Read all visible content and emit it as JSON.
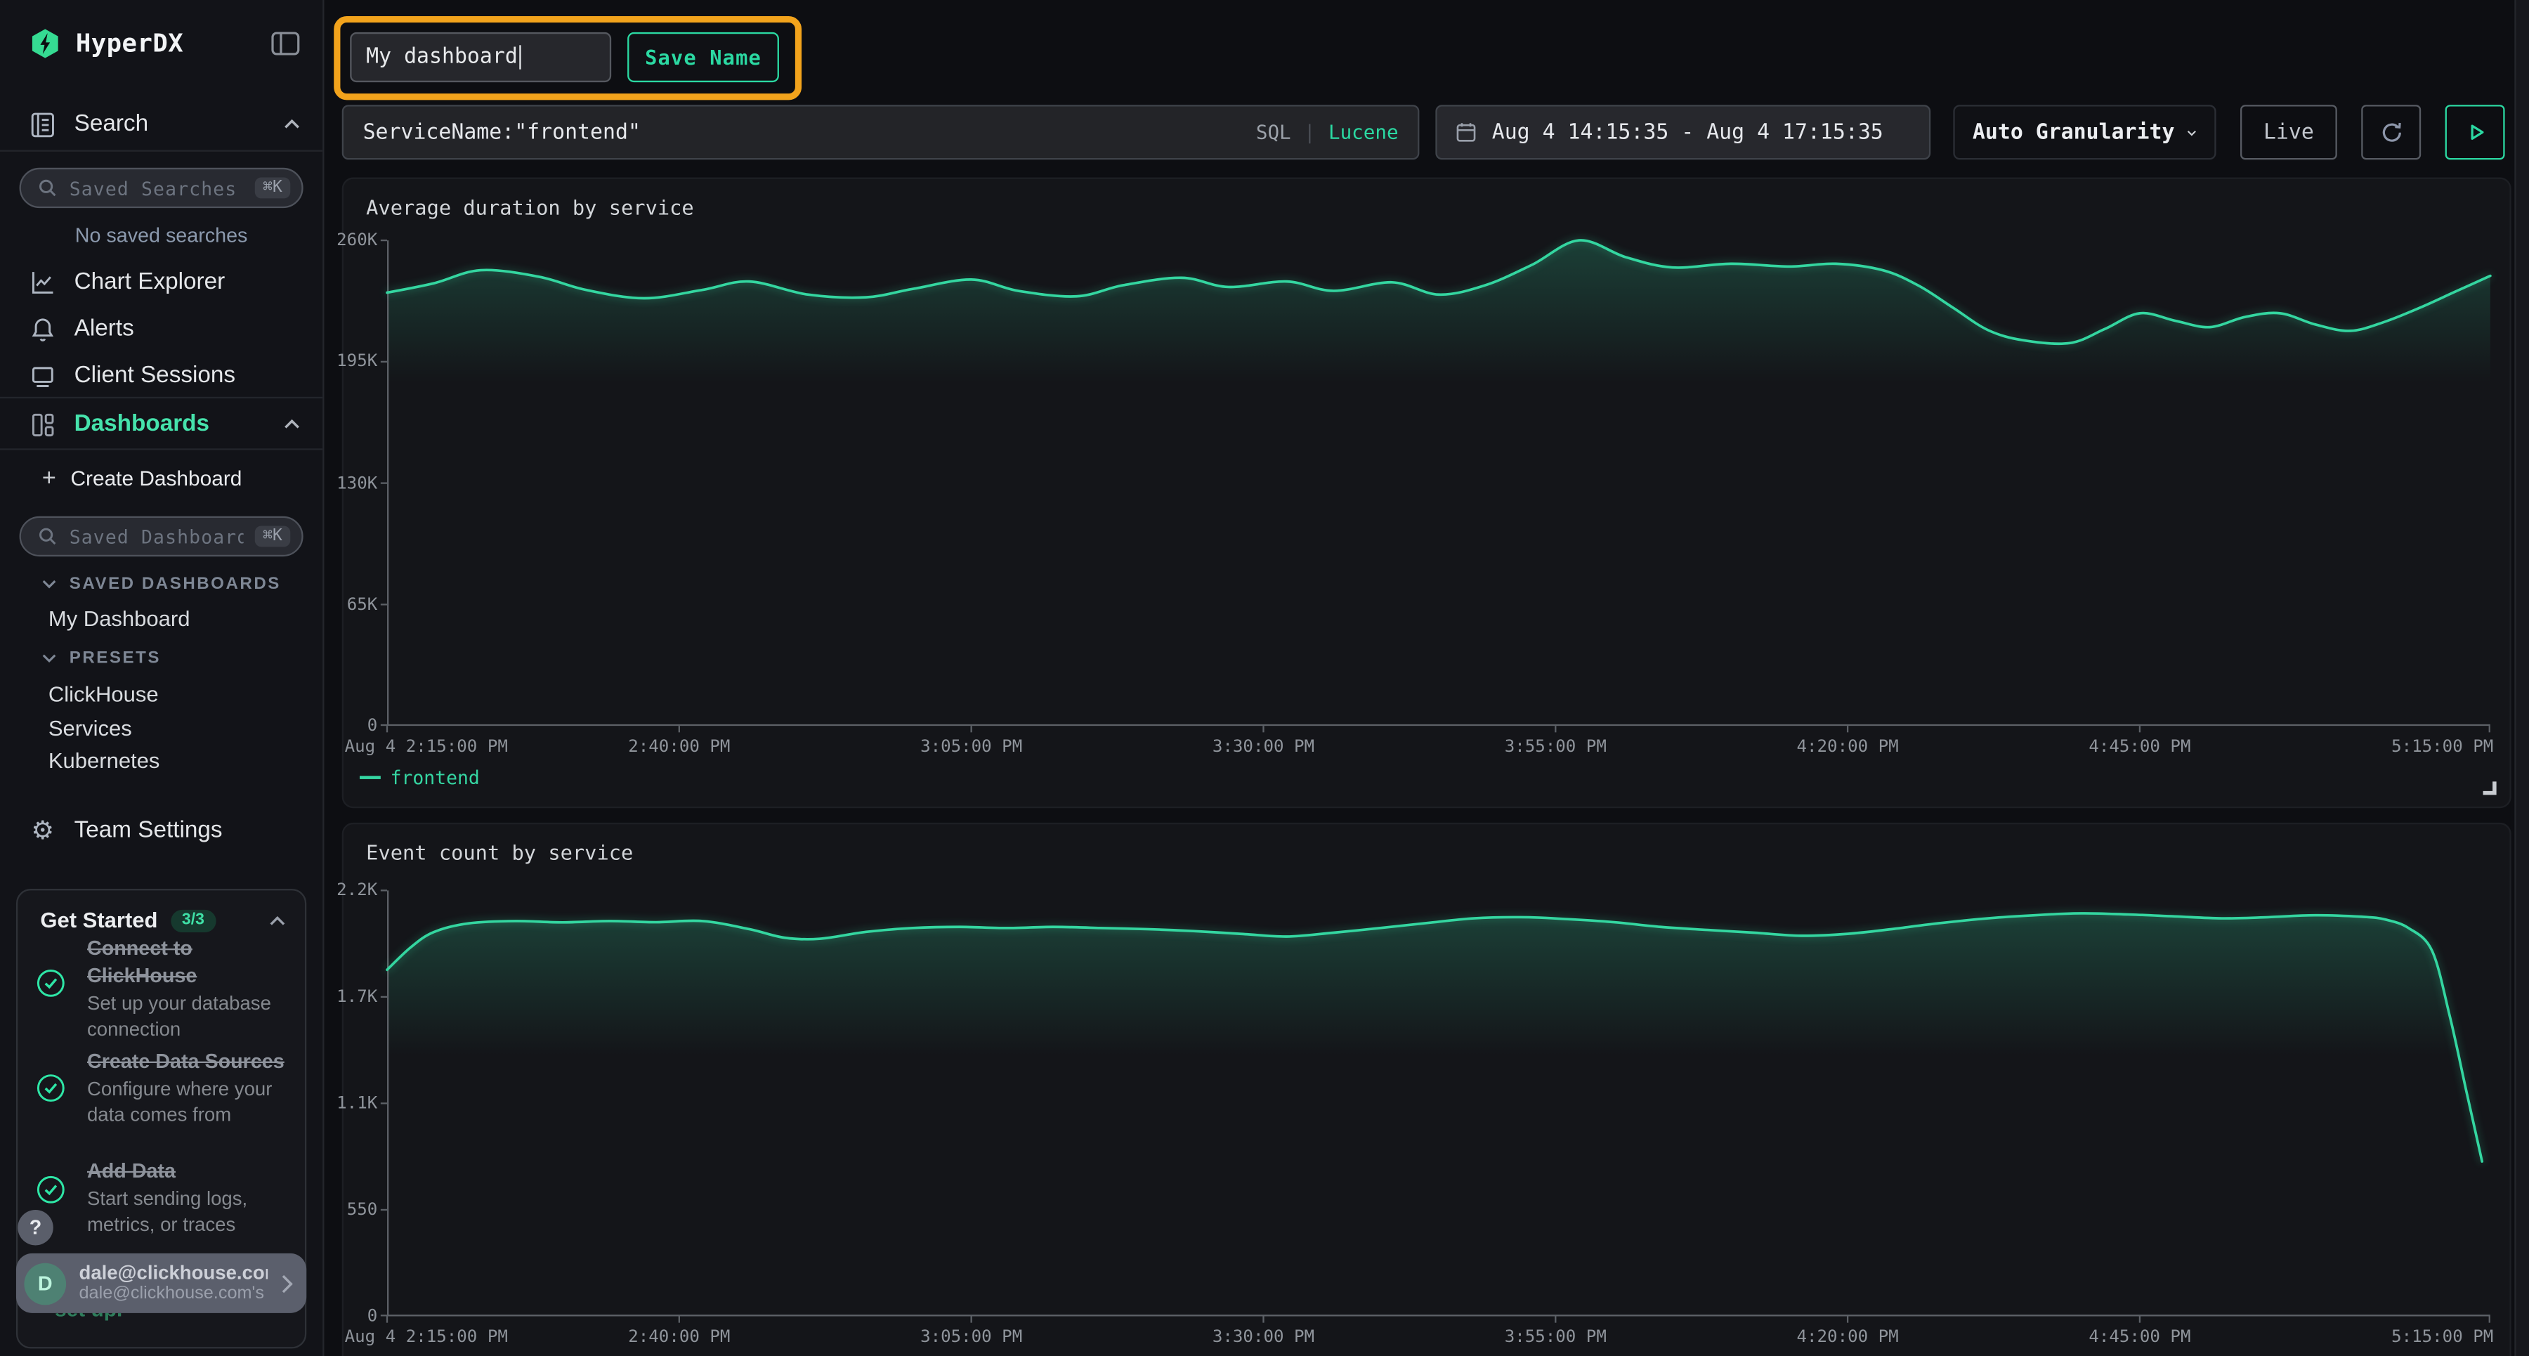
{
  "app": {
    "brand": "HyperDX"
  },
  "sidebar": {
    "brand": "HyperDX",
    "search_label": "Search",
    "saved_searches": {
      "placeholder": "Saved Searches",
      "shortcut": "⌘K"
    },
    "no_saved_searches": "No saved searches",
    "chart_explorer": "Chart Explorer",
    "alerts": "Alerts",
    "client_sessions": "Client Sessions",
    "dashboards": "Dashboards",
    "create_dashboard": "Create Dashboard",
    "create_plus": "+",
    "saved_dashboards": {
      "placeholder": "Saved Dashboards",
      "shortcut": "⌘K"
    },
    "saved_dashboards_header": "SAVED DASHBOARDS",
    "saved_dashboard_items": [
      "My Dashboard"
    ],
    "presets_header": "PRESETS",
    "preset_items": [
      "ClickHouse",
      "Services",
      "Kubernetes"
    ],
    "team_settings": "Team Settings",
    "get_started": {
      "title": "Get Started",
      "badge": "3/3",
      "items": [
        {
          "title": "Connect to ClickHouse",
          "subtitle": "Set up your database connection"
        },
        {
          "title": "Create Data Sources",
          "subtitle": "Configure where your data comes from"
        },
        {
          "title": "Add Data",
          "subtitle": "Start sending logs, metrics, or traces"
        }
      ]
    },
    "help_label": "?",
    "occluded_text": "set up.",
    "user": {
      "initial": "D",
      "email": "dale@clickhouse.com",
      "subtitle": "dale@clickhouse.com's"
    }
  },
  "topbar": {
    "dashboard_name": "My dashboard",
    "save_button": "Save Name"
  },
  "filters": {
    "query": "ServiceName:\"frontend\"",
    "sql_label": "SQL",
    "divider": "|",
    "lucene_label": "Lucene",
    "time_range": "Aug 4 14:15:35 - Aug 4 17:15:35",
    "granularity": "Auto Granularity",
    "live_button": "Live"
  },
  "colors": {
    "accent": "#2bd9a2",
    "line": "#34d6a0",
    "annotation": "#f2a31c",
    "brand_green": "#46e3ac"
  },
  "chart_data": [
    {
      "type": "line",
      "title": "Average duration by service",
      "x_range_minutes": [
        135,
        315
      ],
      "y_range": [
        0,
        260000
      ],
      "ylim": [
        0,
        260000
      ],
      "y_tick_labels": [
        "0",
        "65K",
        "130K",
        "195K",
        "260K"
      ],
      "x_tick_labels": [
        "Aug 4 2:15:00 PM",
        "2:40:00 PM",
        "3:05:00 PM",
        "3:30:00 PM",
        "3:55:00 PM",
        "4:20:00 PM",
        "4:45:00 PM",
        "5:15:00 PM"
      ],
      "x_tick_minutes": [
        135,
        160,
        185,
        210,
        235,
        260,
        285,
        315
      ],
      "grid": false,
      "legend_position": "bottom-left",
      "series": [
        {
          "name": "frontend",
          "color": "#34d6a0",
          "points": [
            [
              135,
              232000
            ],
            [
              139,
              237000
            ],
            [
              143,
              244000
            ],
            [
              148,
              240500
            ],
            [
              152,
              233500
            ],
            [
              157,
              229000
            ],
            [
              162,
              233500
            ],
            [
              166,
              238000
            ],
            [
              171,
              231000
            ],
            [
              176,
              229500
            ],
            [
              180,
              234000
            ],
            [
              185,
              239000
            ],
            [
              189,
              233000
            ],
            [
              194,
              230000
            ],
            [
              198,
              236000
            ],
            [
              203,
              240000
            ],
            [
              207,
              235000
            ],
            [
              212,
              238000
            ],
            [
              216,
              233000
            ],
            [
              221,
              237500
            ],
            [
              225,
              231000
            ],
            [
              229,
              236000
            ],
            [
              233,
              247000
            ],
            [
              237,
              260000
            ],
            [
              241,
              251000
            ],
            [
              245,
              245500
            ],
            [
              250,
              247500
            ],
            [
              255,
              246000
            ],
            [
              259,
              247500
            ],
            [
              263,
              244000
            ],
            [
              266,
              236000
            ],
            [
              269,
              224000
            ],
            [
              272,
              212000
            ],
            [
              275,
              206500
            ],
            [
              279,
              205000
            ],
            [
              282,
              212500
            ],
            [
              285,
              221000
            ],
            [
              288,
              217000
            ],
            [
              291,
              213500
            ],
            [
              294,
              219000
            ],
            [
              297,
              221000
            ],
            [
              300,
              215000
            ],
            [
              303,
              211500
            ],
            [
              306,
              216500
            ],
            [
              309,
              224000
            ],
            [
              312,
              232500
            ],
            [
              315,
              241000
            ]
          ]
        }
      ]
    },
    {
      "type": "line",
      "title": "Event count by service",
      "x_range_minutes": [
        135,
        315
      ],
      "y_range": [
        0,
        2200
      ],
      "ylim": [
        0,
        2200
      ],
      "y_tick_labels": [
        "0",
        "550",
        "1.1K",
        "1.7K",
        "2.2K"
      ],
      "x_tick_labels": [
        "Aug 4 2:15:00 PM",
        "2:40:00 PM",
        "3:05:00 PM",
        "3:30:00 PM",
        "3:55:00 PM",
        "4:20:00 PM",
        "4:45:00 PM",
        "5:15:00 PM"
      ],
      "x_tick_minutes": [
        135,
        160,
        185,
        210,
        235,
        260,
        285,
        315
      ],
      "grid": false,
      "legend_position": "none",
      "series": [
        {
          "name": "frontend",
          "color": "#34d6a0",
          "points": [
            [
              135,
              1790
            ],
            [
              137,
              1905
            ],
            [
              139,
              1985
            ],
            [
              142,
              2030
            ],
            [
              146,
              2042
            ],
            [
              150,
              2035
            ],
            [
              154,
              2042
            ],
            [
              158,
              2036
            ],
            [
              162,
              2042
            ],
            [
              166,
              2000
            ],
            [
              169,
              1956
            ],
            [
              172,
              1950
            ],
            [
              176,
              1986
            ],
            [
              180,
              2006
            ],
            [
              184,
              2012
            ],
            [
              188,
              2006
            ],
            [
              192,
              2012
            ],
            [
              196,
              2006
            ],
            [
              200,
              2000
            ],
            [
              204,
              1990
            ],
            [
              208,
              1976
            ],
            [
              212,
              1962
            ],
            [
              216,
              1982
            ],
            [
              220,
              2006
            ],
            [
              224,
              2032
            ],
            [
              228,
              2056
            ],
            [
              232,
              2062
            ],
            [
              236,
              2052
            ],
            [
              240,
              2036
            ],
            [
              244,
              2012
            ],
            [
              248,
              1996
            ],
            [
              252,
              1982
            ],
            [
              256,
              1966
            ],
            [
              260,
              1976
            ],
            [
              264,
              2002
            ],
            [
              268,
              2032
            ],
            [
              272,
              2056
            ],
            [
              276,
              2072
            ],
            [
              280,
              2082
            ],
            [
              284,
              2076
            ],
            [
              288,
              2066
            ],
            [
              292,
              2056
            ],
            [
              296,
              2062
            ],
            [
              300,
              2072
            ],
            [
              304,
              2064
            ],
            [
              306,
              2050
            ],
            [
              308,
              2006
            ],
            [
              310,
              1890
            ],
            [
              311.5,
              1560
            ],
            [
              313,
              1150
            ],
            [
              314.3,
              800
            ]
          ]
        }
      ]
    }
  ]
}
